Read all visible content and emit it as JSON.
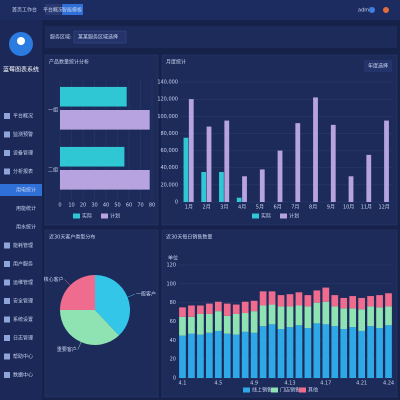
{
  "header": {
    "breadcrumb": "首页工作台",
    "user": "admin"
  },
  "tabs": [
    "平台概况",
    "智能模板"
  ],
  "sidebar": {
    "title": "蓝莓图表系统",
    "menu": [
      "平台概况",
      "监测预警",
      "设备管理",
      "分析报表",
      "用电统计",
      "用能统计",
      "用水统计",
      "能耗管理",
      "用户服务",
      "运维管理",
      "安全管理",
      "系统设置",
      "日志管理",
      "帮助中心",
      "数据中心"
    ],
    "sub": [
      4,
      5,
      6
    ],
    "active": 4
  },
  "filter": {
    "label": "服务区域:",
    "value": "某某服务区域选择"
  },
  "chart_data": [
    {
      "type": "hbar",
      "title": "产品数量统计分析",
      "categories": [
        "一组",
        "二组"
      ],
      "series": [
        {
          "name": "实际",
          "color": "#2ec7d3",
          "values": [
            58,
            56
          ]
        },
        {
          "name": "计划",
          "color": "#b7a3e0",
          "values": [
            78,
            78
          ]
        }
      ],
      "xlim": [
        0,
        80
      ],
      "xticks": [
        0,
        10,
        20,
        30,
        40,
        50,
        60,
        70,
        80
      ]
    },
    {
      "type": "bar",
      "title": "月度统计",
      "selector": "年度选择",
      "categories": [
        "1月",
        "2月",
        "3月",
        "4月",
        "5月",
        "6月",
        "7月",
        "8月",
        "9月",
        "10月",
        "11月",
        "12月"
      ],
      "series": [
        {
          "name": "实际",
          "color": "#2ec7d3",
          "values": [
            75000,
            35000,
            35000,
            5000,
            0,
            0,
            0,
            0,
            0,
            0,
            0,
            0
          ]
        },
        {
          "name": "计划",
          "color": "#b7a3e0",
          "values": [
            120000,
            88000,
            95000,
            30000,
            38000,
            60000,
            92000,
            122000,
            90000,
            30000,
            55000,
            95000
          ]
        }
      ],
      "ylim": [
        0,
        140000
      ],
      "yticks": [
        0,
        {
          "value": 20000,
          "label": "20,000"
        },
        {
          "value": 40000,
          "label": "40,000"
        },
        {
          "value": 60000,
          "label": "60,000"
        },
        {
          "value": 80000,
          "label": "80,000"
        },
        {
          "value": 100000,
          "label": "100,000"
        },
        {
          "value": 120000,
          "label": "120,000"
        },
        {
          "value": 140000,
          "label": "140,000"
        }
      ]
    },
    {
      "type": "pie",
      "title": "近30天客户类型分布",
      "categories": [
        "一般客户",
        "重要客户",
        "核心客户"
      ],
      "values": [
        38,
        37,
        25
      ],
      "colors": [
        "#33c6e8",
        "#8fe3b2",
        "#f06c8e"
      ]
    },
    {
      "type": "stacked",
      "title": "近30天每日销售数量",
      "unit": "单位",
      "categories": [
        "4.1",
        null,
        null,
        null,
        "4.5",
        null,
        null,
        null,
        "4.9",
        null,
        null,
        null,
        "4.13",
        null,
        null,
        null,
        "4.17",
        null,
        null,
        null,
        "4.21",
        null,
        null,
        "4.24"
      ],
      "series": [
        {
          "name": "线上销售",
          "color": "#2fa8e8",
          "values": [
            45,
            47,
            46,
            48,
            50,
            47,
            46,
            49,
            48,
            55,
            57,
            52,
            54,
            56,
            53,
            58,
            57,
            55,
            52,
            54,
            50,
            55,
            53,
            56
          ]
        },
        {
          "name": "门店销售",
          "color": "#8fe3b2",
          "values": [
            20,
            18,
            22,
            20,
            21,
            19,
            22,
            20,
            23,
            22,
            21,
            24,
            22,
            21,
            23,
            22,
            24,
            21,
            22,
            20,
            23,
            21,
            22,
            20
          ]
        },
        {
          "name": "其他",
          "color": "#f06c8e",
          "values": [
            10,
            12,
            9,
            11,
            10,
            13,
            10,
            12,
            11,
            15,
            14,
            12,
            13,
            14,
            12,
            13,
            15,
            12,
            11,
            13,
            12,
            11,
            13,
            14
          ]
        }
      ],
      "ylim": [
        0,
        120
      ],
      "yticks": [
        0,
        20,
        40,
        60,
        80,
        100,
        120
      ]
    }
  ]
}
